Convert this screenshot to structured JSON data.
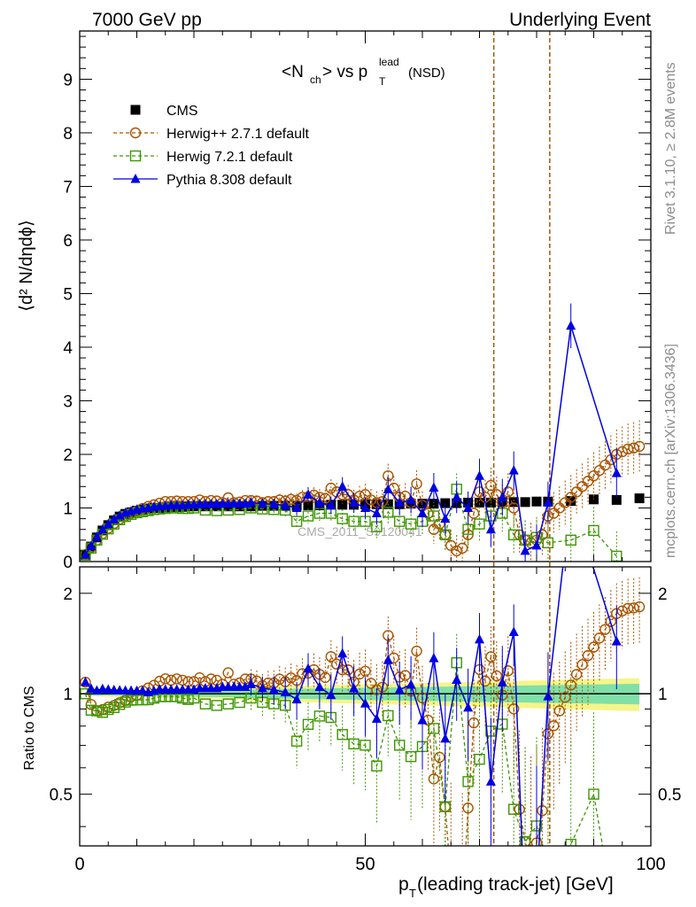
{
  "chart_data": {
    "type": "scatter",
    "header_left": "7000 GeV pp",
    "header_right": "Underlying Event",
    "side_text_top": "Rivet 3.1.10, ≥ 2.8M events",
    "side_text_bottom": "mcplots.cern.ch [arXiv:1306.3436]",
    "title_main": "<N",
    "title_ch": "ch",
    "title_vs": "> vs p",
    "title_sup": "lead",
    "title_sub": "T",
    "title_nsd": "(NSD)",
    "ylabel_top": "⟨d² N/dηdϕ⟩",
    "ylabel_bottom": "Ratio to CMS",
    "xlabel": "p",
    "xlabel_sub": "T",
    "xlabel_rest": " (leading track-jet) [GeV]",
    "watermark": "CMS_2011_S9120041",
    "xlim": [
      0,
      100
    ],
    "ylim_top": [
      0,
      9.9
    ],
    "ylim_ratio": [
      0.35,
      2.4
    ],
    "x_ticks": [
      "0",
      "50",
      "100"
    ],
    "y_ticks_top": [
      "0",
      "1",
      "2",
      "3",
      "4",
      "5",
      "6",
      "7",
      "8",
      "9"
    ],
    "y_ticks_ratio": [
      "0.5",
      "1",
      "2"
    ],
    "vlines": [
      72.5,
      82.3
    ],
    "colors": {
      "cms": "#000000",
      "herwigpp": "#a85400",
      "herwig7": "#3d9600",
      "pythia": "#0000e0",
      "band_inner": "#7fe0a8",
      "band_outer": "#f5f58a",
      "vline": "#a85400"
    },
    "legend": [
      "CMS",
      "Herwig++ 2.7.1 default",
      "Herwig 7.2.1 default",
      "Pythia 8.308 default"
    ],
    "series": [
      {
        "name": "CMS",
        "style": "square-filled",
        "color": "#000000",
        "x": [
          1,
          2,
          3,
          4,
          5,
          6,
          7,
          8,
          9,
          10,
          11,
          12,
          13,
          14,
          15,
          16,
          17,
          18,
          19,
          20,
          22,
          24,
          26,
          28,
          30,
          32,
          34,
          36,
          38,
          40,
          42,
          44,
          46,
          48,
          50,
          52,
          54,
          56,
          58,
          60,
          62,
          64,
          66,
          68,
          70,
          72,
          74,
          76,
          78,
          80,
          82,
          86,
          90,
          94,
          98
        ],
        "y": [
          0.12,
          0.28,
          0.45,
          0.58,
          0.68,
          0.77,
          0.84,
          0.89,
          0.92,
          0.95,
          0.97,
          0.99,
          1.0,
          1.0,
          1.01,
          1.02,
          1.02,
          1.02,
          1.03,
          1.03,
          1.03,
          1.03,
          1.03,
          1.03,
          1.03,
          1.04,
          1.04,
          1.04,
          1.04,
          1.05,
          1.05,
          1.06,
          1.06,
          1.06,
          1.07,
          1.07,
          1.07,
          1.07,
          1.08,
          1.08,
          1.08,
          1.09,
          1.09,
          1.1,
          1.1,
          1.1,
          1.11,
          1.11,
          1.11,
          1.12,
          1.12,
          1.13,
          1.16,
          1.15,
          1.18
        ]
      },
      {
        "name": "Herwig++ 2.7.1 default",
        "style": "circle-open",
        "color": "#a85400",
        "x": [
          1,
          2,
          3,
          4,
          5,
          6,
          7,
          8,
          9,
          10,
          11,
          12,
          13,
          14,
          15,
          16,
          17,
          18,
          19,
          20,
          21,
          22,
          23,
          24,
          25,
          26,
          27,
          28,
          29,
          30,
          31,
          32,
          33,
          34,
          35,
          36,
          37,
          38,
          39,
          40,
          41,
          42,
          43,
          44,
          45,
          46,
          47,
          48,
          49,
          50,
          51,
          52,
          53,
          54,
          55,
          56,
          57,
          58,
          59,
          60,
          61,
          62,
          63,
          64,
          65,
          66,
          67,
          68,
          69,
          70,
          71,
          72,
          73,
          74,
          75,
          76,
          77,
          78,
          79,
          80,
          81,
          82,
          83,
          84,
          85,
          86,
          87,
          88,
          89,
          90,
          91,
          92,
          93,
          94,
          95,
          96,
          97,
          98
        ],
        "y": [
          0.13,
          0.26,
          0.4,
          0.52,
          0.62,
          0.71,
          0.79,
          0.85,
          0.9,
          0.94,
          0.99,
          1.03,
          1.06,
          1.09,
          1.12,
          1.12,
          1.13,
          1.12,
          1.12,
          1.12,
          1.15,
          1.12,
          1.14,
          1.13,
          1.1,
          1.19,
          1.1,
          1.11,
          1.14,
          1.14,
          1.13,
          1.1,
          1.12,
          1.12,
          1.15,
          1.13,
          1.16,
          1.14,
          1.2,
          1.21,
          1.24,
          1.2,
          1.18,
          1.37,
          1.3,
          1.25,
          1.25,
          1.15,
          1.22,
          1.25,
          1.15,
          1.1,
          1.12,
          1.6,
          1.37,
          1.2,
          1.22,
          1.1,
          1.45,
          1.05,
          0.9,
          0.6,
          0.7,
          0.5,
          0.3,
          0.2,
          0.25,
          0.5,
          0.9,
          1.3,
          1.2,
          1.42,
          1.25,
          1.1,
          1.3,
          1.0,
          0.5,
          0.4,
          0.35,
          0.4,
          0.5,
          0.85,
          0.9,
          1.0,
          1.1,
          1.2,
          1.3,
          1.4,
          1.5,
          1.6,
          1.7,
          1.8,
          1.9,
          2.0,
          2.05,
          2.1,
          2.12,
          2.15
        ]
      },
      {
        "name": "Herwig 7.2.1 default",
        "style": "square-open",
        "color": "#3d9600",
        "x": [
          1,
          2,
          3,
          4,
          5,
          6,
          7,
          8,
          9,
          10,
          11,
          12,
          13,
          14,
          15,
          16,
          17,
          18,
          19,
          20,
          22,
          24,
          26,
          28,
          30,
          32,
          34,
          36,
          38,
          40,
          42,
          44,
          46,
          48,
          50,
          52,
          54,
          56,
          58,
          60,
          62,
          64,
          66,
          68,
          70,
          72,
          74,
          76,
          78,
          80,
          82,
          86,
          90,
          94
        ],
        "y": [
          0.12,
          0.25,
          0.4,
          0.51,
          0.61,
          0.7,
          0.78,
          0.84,
          0.88,
          0.91,
          0.93,
          0.95,
          0.97,
          0.98,
          0.99,
          1.0,
          1.0,
          0.99,
          0.99,
          1.0,
          0.96,
          0.95,
          0.96,
          0.97,
          1.0,
          0.98,
          0.97,
          0.96,
          0.75,
          0.85,
          0.9,
          0.9,
          0.8,
          0.75,
          0.75,
          0.65,
          0.92,
          0.75,
          0.7,
          0.75,
          0.85,
          0.5,
          1.35,
          0.6,
          0.7,
          0.85,
          0.9,
          0.5,
          0.4,
          0.45,
          0.35,
          0.4,
          0.58,
          0.1
        ]
      },
      {
        "name": "Pythia 8.308 default",
        "style": "triangle-filled",
        "color": "#0000e0",
        "x": [
          1,
          2,
          3,
          4,
          5,
          6,
          7,
          8,
          9,
          10,
          11,
          12,
          13,
          14,
          15,
          16,
          17,
          18,
          19,
          20,
          21,
          22,
          23,
          24,
          25,
          26,
          27,
          28,
          29,
          30,
          32,
          34,
          36,
          38,
          40,
          42,
          44,
          46,
          48,
          50,
          52,
          54,
          56,
          58,
          60,
          62,
          64,
          66,
          68,
          70,
          72,
          74,
          76,
          78,
          80,
          82,
          86,
          94
        ],
        "y": [
          0.13,
          0.29,
          0.46,
          0.6,
          0.7,
          0.79,
          0.86,
          0.91,
          0.94,
          0.97,
          0.99,
          1.0,
          1.02,
          1.03,
          1.04,
          1.05,
          1.05,
          1.05,
          1.06,
          1.06,
          1.07,
          1.07,
          1.07,
          1.07,
          1.08,
          1.08,
          1.08,
          1.08,
          1.08,
          1.1,
          1.08,
          1.07,
          1.05,
          1.0,
          1.25,
          1.1,
          1.05,
          1.4,
          1.1,
          1.0,
          0.9,
          1.35,
          1.1,
          1.15,
          0.9,
          1.38,
          0.8,
          1.2,
          1.0,
          1.6,
          0.6,
          1.2,
          1.7,
          0.2,
          0.3,
          1.1,
          4.4,
          1.65
        ]
      }
    ]
  }
}
